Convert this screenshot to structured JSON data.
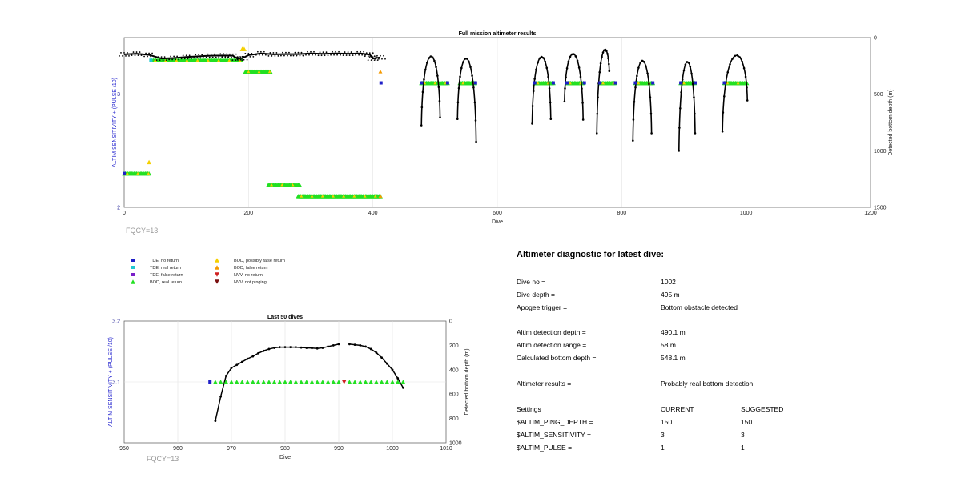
{
  "chart_data": [
    {
      "type": "scatter",
      "title": "Full mission altimeter results",
      "xlabel": "Dive",
      "ylabel_left": "ALTIM SENSITIVITY + (PULSE /10)",
      "ylabel_right": "Detected bottom depth (m)",
      "xlim": [
        0,
        1200
      ],
      "ylim_left": [
        2,
        3.5
      ],
      "ylim_right_reversed": [
        0,
        1500
      ],
      "xticks": [
        "0",
        "200",
        "400",
        "600",
        "800",
        "1000",
        "1200"
      ],
      "yticks_left": [
        "2",
        "3"
      ],
      "yticks_right": [
        "0",
        "500",
        "1000",
        "1500"
      ],
      "grid": true,
      "annotation": "FQCY=13",
      "bands": [
        {
          "name": "BOD, real return",
          "start": 45,
          "end": 190,
          "y": 3.3
        },
        {
          "name": "BOD, real return",
          "start": 195,
          "end": 235,
          "y": 3.2
        },
        {
          "name": "BOD, real return",
          "start": 0,
          "end": 40,
          "y": 2.3
        },
        {
          "name": "BOD, real return",
          "start": 232,
          "end": 282,
          "y": 2.2
        },
        {
          "name": "BOD, real return",
          "start": 280,
          "end": 412,
          "y": 2.1
        },
        {
          "name": "BOD, real return",
          "start": 478,
          "end": 520,
          "y": 3.1
        },
        {
          "name": "BOD, real return",
          "start": 540,
          "end": 565,
          "y": 3.1
        },
        {
          "name": "BOD, real return",
          "start": 660,
          "end": 690,
          "y": 3.1
        },
        {
          "name": "BOD, real return",
          "start": 712,
          "end": 738,
          "y": 3.1
        },
        {
          "name": "BOD, real return",
          "start": 765,
          "end": 790,
          "y": 3.1
        },
        {
          "name": "BOD, real return",
          "start": 822,
          "end": 850,
          "y": 3.1
        },
        {
          "name": "BOD, real return",
          "start": 895,
          "end": 918,
          "y": 3.1
        },
        {
          "name": "BOD, real return",
          "start": 965,
          "end": 1002,
          "y": 3.1
        }
      ],
      "tde_no_return": [
        {
          "x": 413,
          "y": 3.1
        },
        {
          "x": 478,
          "y": 3.1
        },
        {
          "x": 520,
          "y": 3.1
        },
        {
          "x": 565,
          "y": 3.1
        },
        {
          "x": 660,
          "y": 3.1
        },
        {
          "x": 690,
          "y": 3.1
        },
        {
          "x": 712,
          "y": 3.1
        },
        {
          "x": 740,
          "y": 3.1
        },
        {
          "x": 765,
          "y": 3.1
        },
        {
          "x": 790,
          "y": 3.1
        },
        {
          "x": 822,
          "y": 3.1
        },
        {
          "x": 850,
          "y": 3.1
        },
        {
          "x": 895,
          "y": 3.1
        },
        {
          "x": 918,
          "y": 3.1
        },
        {
          "x": 965,
          "y": 3.1
        },
        {
          "x": 0,
          "y": 2.3
        }
      ],
      "tde_real_return": [
        {
          "x": 43,
          "y": 3.3
        }
      ],
      "bod_possibly_false": [
        {
          "x": 190,
          "y": 3.4
        },
        {
          "x": 193,
          "y": 3.4
        },
        {
          "x": 40,
          "y": 2.4
        }
      ],
      "bod_false": [
        {
          "x": 412,
          "y": 3.2
        },
        {
          "x": 412,
          "y": 2.1
        }
      ],
      "depth_series": [
        {
          "dive": 0,
          "depth": 148
        },
        {
          "dive": 20,
          "depth": 142
        },
        {
          "dive": 40,
          "depth": 152
        },
        {
          "dive": 60,
          "depth": 185
        },
        {
          "dive": 80,
          "depth": 180
        },
        {
          "dive": 100,
          "depth": 172
        },
        {
          "dive": 120,
          "depth": 165
        },
        {
          "dive": 140,
          "depth": 160
        },
        {
          "dive": 160,
          "depth": 158
        },
        {
          "dive": 175,
          "depth": 160
        },
        {
          "dive": 182,
          "depth": 185
        },
        {
          "dive": 190,
          "depth": 182
        },
        {
          "dive": 200,
          "depth": 155
        },
        {
          "dive": 220,
          "depth": 140
        },
        {
          "dive": 240,
          "depth": 148
        },
        {
          "dive": 260,
          "depth": 146
        },
        {
          "dive": 280,
          "depth": 146
        },
        {
          "dive": 300,
          "depth": 140
        },
        {
          "dive": 320,
          "depth": 143
        },
        {
          "dive": 340,
          "depth": 140
        },
        {
          "dive": 360,
          "depth": 142
        },
        {
          "dive": 380,
          "depth": 140
        },
        {
          "dive": 395,
          "depth": 150
        },
        {
          "dive": 400,
          "depth": 185
        },
        {
          "dive": 412,
          "depth": 175
        }
      ],
      "dive_profiles": [
        {
          "start": 478,
          "end": 508,
          "top": 175,
          "bot_start": 775,
          "bot_end": 705
        },
        {
          "start": 536,
          "end": 566,
          "top": 175,
          "bot_start": 720,
          "bot_end": 920
        },
        {
          "start": 656,
          "end": 686,
          "top": 180,
          "bot_start": 760,
          "bot_end": 720
        },
        {
          "start": 708,
          "end": 738,
          "top": 180,
          "bot_start": 565,
          "bot_end": 725
        },
        {
          "start": 760,
          "end": 780,
          "top": 185,
          "bot_start": 845,
          "bot_end": 295
        },
        {
          "start": 818,
          "end": 848,
          "top": 180,
          "bot_start": 910,
          "bot_end": 845
        },
        {
          "start": 892,
          "end": 918,
          "top": 180,
          "bot_start": 1000,
          "bot_end": 845
        },
        {
          "start": 962,
          "end": 1002,
          "top": 185,
          "bot_start": 830,
          "bot_end": 555
        }
      ]
    },
    {
      "type": "scatter",
      "title": "Last 50 dives",
      "xlabel": "Dive",
      "ylabel_left": "ALTIM SENSITIVITY + (PULSE /10)",
      "ylabel_right": "Detected bottom depth (m)",
      "xlim": [
        950,
        1010
      ],
      "ylim_left": [
        3,
        3.2
      ],
      "ylim_right_reversed": [
        0,
        1000
      ],
      "xticks": [
        "950",
        "960",
        "970",
        "980",
        "990",
        "1000",
        "1010"
      ],
      "yticks_left": [
        "3.1",
        "3.2"
      ],
      "yticks_right": [
        "0",
        "200",
        "400",
        "600",
        "800",
        "1000"
      ],
      "grid": true,
      "annotation": "FQCY=13",
      "tde_no_return": [
        {
          "x": 966,
          "y": 3.1
        }
      ],
      "bod_real_return_x": [
        967,
        968,
        969,
        970,
        971,
        972,
        973,
        974,
        975,
        976,
        977,
        978,
        979,
        980,
        981,
        982,
        983,
        984,
        985,
        986,
        987,
        988,
        989,
        990,
        992,
        993,
        994,
        995,
        996,
        997,
        998,
        999,
        1000,
        1001,
        1002
      ],
      "nvv_no_return": [
        {
          "x": 991,
          "y": 3.1
        }
      ],
      "depth_x": [
        967,
        968,
        969,
        970,
        971,
        972,
        973,
        974,
        975,
        976,
        977,
        978,
        979,
        980,
        981,
        982,
        983,
        984,
        985,
        986,
        987,
        988,
        989,
        990,
        992,
        993,
        994,
        995,
        996,
        997,
        998,
        999,
        1000,
        1001,
        1002
      ],
      "depth_y": [
        820,
        620,
        450,
        385,
        360,
        335,
        310,
        290,
        265,
        245,
        230,
        220,
        215,
        215,
        215,
        215,
        218,
        220,
        222,
        225,
        220,
        210,
        200,
        190,
        190,
        195,
        200,
        210,
        230,
        260,
        300,
        350,
        400,
        470,
        548
      ]
    }
  ],
  "legend": {
    "col1": [
      "TDE, no return",
      "TDE, real return",
      "TDE, false return",
      "BOD, real return"
    ],
    "col2": [
      "BOD, possibly false return",
      "BOD, false return",
      "NVV, no return",
      "NVV, not pinging"
    ],
    "colors": {
      "tde_no_return": "#1f1fc8",
      "tde_real_return": "#20c8d0",
      "tde_false_return": "#7a1fc8",
      "bod_real_return": "#22e022",
      "bod_possibly_false": "#f5d000",
      "bod_false": "#f59a00",
      "nvv_no_return": "#d02020",
      "nvv_not_pinging": "#7a1010"
    }
  },
  "diagnostic": {
    "title": "Altimeter diagnostic for latest dive:",
    "rows": [
      {
        "label": "Dive no =",
        "value": "1002",
        "suggested": ""
      },
      {
        "label": "Dive depth =",
        "value": "495 m",
        "suggested": ""
      },
      {
        "label": "Apogee trigger =",
        "value": "Bottom obstacle detected",
        "suggested": ""
      },
      {
        "label": "Altim detection depth =",
        "value": "490.1 m",
        "suggested": ""
      },
      {
        "label": "Altim detection range =",
        "value": "58 m",
        "suggested": ""
      },
      {
        "label": "Calculated bottom depth =",
        "value": "548.1 m",
        "suggested": ""
      },
      {
        "label": "Altimeter results =",
        "value": "Probably real bottom detection",
        "suggested": ""
      },
      {
        "label": "Settings",
        "value": "CURRENT",
        "suggested": "SUGGESTED"
      },
      {
        "label": "$ALTIM_PING_DEPTH =",
        "value": "150",
        "suggested": "150"
      },
      {
        "label": "$ALTIM_SENSITIVITY =",
        "value": "3",
        "suggested": "3"
      },
      {
        "label": "$ALTIM_PULSE =",
        "value": "1",
        "suggested": "1"
      }
    ]
  }
}
